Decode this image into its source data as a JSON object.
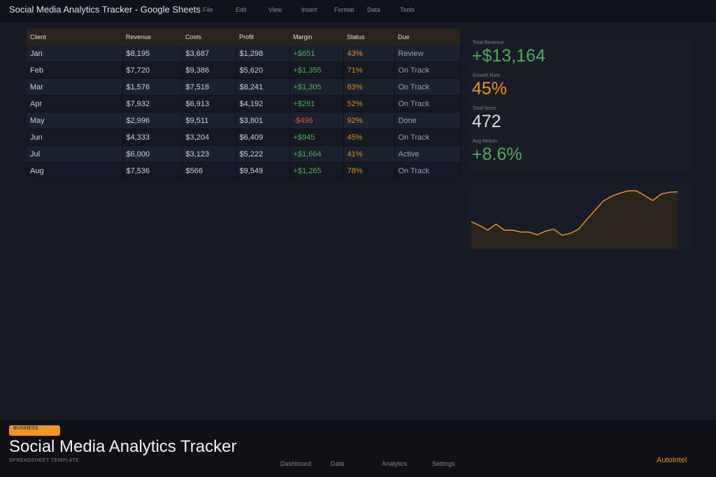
{
  "app": {
    "title": "Social Media Analytics Tracker - Google Sheets"
  },
  "menu": [
    "File",
    "Edit",
    "View",
    "Insert",
    "Format",
    "Data",
    "Tools"
  ],
  "table": {
    "headers": [
      "Client",
      "Revenue",
      "Costs",
      "Profit",
      "Margin",
      "Status",
      "Due"
    ],
    "rows": [
      [
        "Jan",
        "$8,195",
        "$3,687",
        "$1,298",
        "+$651",
        "43%",
        "Review"
      ],
      [
        "Feb",
        "$7,720",
        "$9,386",
        "$5,620",
        "+$1,355",
        "71%",
        "On Track"
      ],
      [
        "Mar",
        "$1,576",
        "$7,518",
        "$8,241",
        "+$1,305",
        "83%",
        "On Track"
      ],
      [
        "Apr",
        "$7,932",
        "$6,913",
        "$4,192",
        "+$291",
        "52%",
        "On Track"
      ],
      [
        "May",
        "$2,996",
        "$9,511",
        "$3,801",
        "-$496",
        "92%",
        "Done"
      ],
      [
        "Jun",
        "$4,333",
        "$3,204",
        "$6,409",
        "+$945",
        "45%",
        "On Track"
      ],
      [
        "Jul",
        "$6,000",
        "$3,123",
        "$5,222",
        "+$1,664",
        "41%",
        "Active"
      ],
      [
        "Aug",
        "$7,536",
        "$566",
        "$9,549",
        "+$1,265",
        "78%",
        "On Track"
      ]
    ]
  },
  "stats": [
    {
      "label": "Total Revenue",
      "value": "+$13,164",
      "color": "#4fae5b"
    },
    {
      "label": "Growth Rate",
      "value": "45%",
      "color": "#f0951f"
    },
    {
      "label": "Total Items",
      "value": "472",
      "color": "#d8dbe0"
    },
    {
      "label": "Avg Return",
      "value": "+8.6%",
      "color": "#4fae5b"
    }
  ],
  "chart_data": {
    "type": "area",
    "values": [
      58,
      50,
      40,
      53,
      40,
      40,
      36,
      36,
      30,
      38,
      42,
      29,
      33,
      42,
      63,
      83,
      103,
      113,
      120,
      125,
      125,
      115,
      104,
      118,
      122,
      123
    ],
    "ylim": [
      0,
      130
    ],
    "line_color": "#f0951f",
    "fill_color": "#2b241c"
  },
  "footer": {
    "badge": "BUSINESS",
    "title": "Social Media Analytics Tracker",
    "subtitle": "SPREADSHEET TEMPLATE",
    "nav": [
      "Dashboard",
      "Data",
      "Analytics",
      "Settings"
    ],
    "brand": "AutoIntel"
  }
}
